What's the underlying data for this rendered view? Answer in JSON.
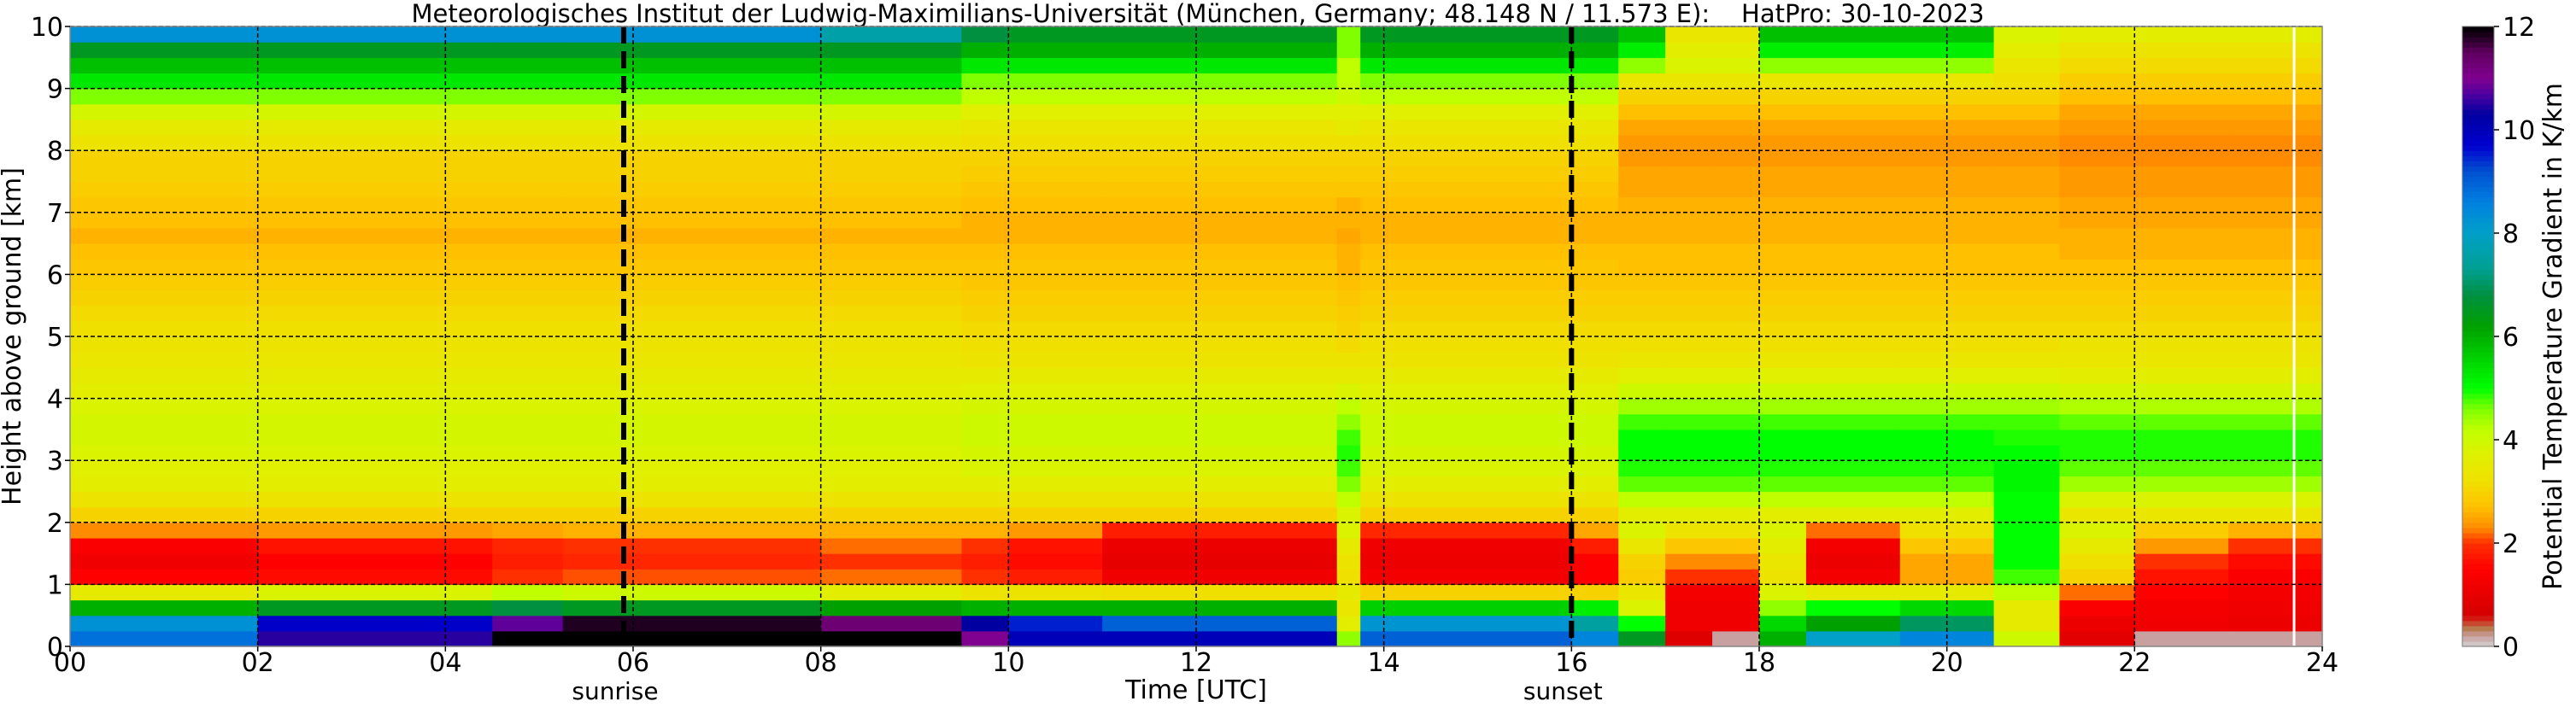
{
  "chart_data": {
    "type": "heatmap",
    "title": "Meteorologisches Institut der Ludwig-Maximilians-Universität (München, Germany; 48.148 N / 11.573 E):    HatPro: 30-10-2023",
    "xlabel": "Time [UTC]",
    "ylabel": "Height above ground [km]",
    "colorbar_label": "Potential Temperature Gradient in K/km",
    "xlim": [
      0,
      24
    ],
    "ylim": [
      0,
      10
    ],
    "clim": [
      0,
      12
    ],
    "grid": true,
    "x_ticks": [
      "00",
      "02",
      "04",
      "06",
      "08",
      "10",
      "12",
      "14",
      "16",
      "18",
      "20",
      "22",
      "24"
    ],
    "y_ticks": [
      "0",
      "1",
      "2",
      "3",
      "4",
      "5",
      "6",
      "7",
      "8",
      "9",
      "10"
    ],
    "colorbar_ticks": [
      "0",
      "2",
      "4",
      "6",
      "8",
      "10",
      "12"
    ],
    "markers": [
      {
        "label": "sunrise",
        "time": 5.9
      },
      {
        "label": "sunset",
        "time": 16.0
      }
    ],
    "missing_data_at": 23.7,
    "height_bin_km": 0.25,
    "columns": [
      {
        "t": 0,
        "values": [
          8.8,
          8.3,
          6.0,
          3.5,
          1.5,
          1.2,
          1.4,
          2.3,
          3.0,
          3.3,
          3.6,
          3.7,
          3.8,
          3.9,
          3.9,
          3.8,
          3.6,
          3.5,
          3.4,
          3.3,
          3.2,
          3.1,
          3.0,
          2.9,
          2.8,
          2.7,
          2.6,
          2.7,
          2.8,
          2.9,
          3.0,
          3.0,
          3.3,
          3.5,
          3.9,
          4.6,
          5.3,
          5.8,
          6.5,
          8.3
        ]
      },
      {
        "t": 2,
        "values": [
          10.5,
          9.8,
          6.5,
          3.8,
          1.6,
          1.5,
          1.7,
          2.4,
          3.0,
          3.3,
          3.6,
          3.7,
          3.8,
          3.9,
          3.9,
          3.8,
          3.6,
          3.5,
          3.4,
          3.3,
          3.2,
          3.1,
          3.0,
          2.9,
          2.8,
          2.7,
          2.6,
          2.7,
          2.8,
          2.9,
          3.0,
          3.0,
          3.3,
          3.5,
          3.9,
          4.6,
          5.3,
          5.8,
          6.5,
          8.3
        ]
      },
      {
        "t": 4.5,
        "values": [
          12,
          10.8,
          6.8,
          4.2,
          2.0,
          1.8,
          1.9,
          2.5,
          3.0,
          3.3,
          3.6,
          3.7,
          3.8,
          3.9,
          3.9,
          3.8,
          3.6,
          3.5,
          3.4,
          3.3,
          3.2,
          3.1,
          3.0,
          2.9,
          2.8,
          2.7,
          2.6,
          2.7,
          2.8,
          2.9,
          3.0,
          3.0,
          3.3,
          3.5,
          3.9,
          4.6,
          5.3,
          5.8,
          6.5,
          8.3
        ]
      },
      {
        "t": 5.25,
        "values": [
          12,
          11.8,
          6.5,
          4.0,
          2.1,
          1.9,
          2.0,
          2.6,
          3.0,
          3.3,
          3.6,
          3.7,
          3.8,
          3.9,
          3.9,
          3.8,
          3.6,
          3.5,
          3.4,
          3.3,
          3.2,
          3.1,
          3.0,
          2.9,
          2.8,
          2.7,
          2.6,
          2.7,
          2.8,
          2.9,
          3.0,
          3.0,
          3.3,
          3.5,
          3.9,
          4.6,
          5.3,
          5.8,
          6.5,
          8.3
        ]
      },
      {
        "t": 8,
        "values": [
          12,
          11.3,
          6.2,
          3.6,
          2.2,
          2.0,
          2.2,
          2.6,
          3.0,
          3.3,
          3.6,
          3.7,
          3.8,
          3.9,
          3.9,
          3.8,
          3.6,
          3.5,
          3.4,
          3.3,
          3.2,
          3.1,
          3.0,
          2.9,
          2.8,
          2.7,
          2.6,
          2.7,
          2.8,
          2.9,
          3.0,
          3.0,
          3.3,
          3.5,
          3.9,
          4.6,
          5.3,
          5.8,
          6.5,
          7.6
        ]
      },
      {
        "t": 9.5,
        "values": [
          11,
          10.3,
          6.0,
          3.3,
          2.0,
          1.8,
          2.0,
          2.6,
          3.0,
          3.3,
          3.6,
          3.8,
          3.9,
          4.0,
          4.0,
          3.9,
          3.7,
          3.5,
          3.3,
          3.2,
          3.1,
          3.0,
          2.9,
          2.8,
          2.8,
          2.7,
          2.6,
          2.6,
          2.7,
          2.8,
          2.9,
          3.0,
          3.2,
          3.4,
          3.7,
          4.2,
          4.6,
          5.3,
          6.0,
          6.8
        ]
      },
      {
        "t": 10,
        "values": [
          10,
          9.5,
          6.0,
          3.3,
          1.8,
          1.6,
          1.7,
          2.4,
          3.0,
          3.3,
          3.6,
          3.8,
          3.9,
          4.0,
          4.0,
          3.9,
          3.7,
          3.5,
          3.3,
          3.2,
          3.1,
          3.0,
          2.9,
          2.8,
          2.8,
          2.7,
          2.6,
          2.6,
          2.7,
          2.8,
          2.9,
          3.0,
          3.2,
          3.4,
          3.7,
          4.2,
          4.6,
          5.3,
          6.0,
          6.5
        ]
      },
      {
        "t": 11,
        "values": [
          10,
          9.0,
          6.0,
          3.2,
          1.2,
          1.0,
          1.1,
          1.8,
          3.0,
          3.3,
          3.6,
          3.8,
          3.9,
          4.0,
          4.0,
          3.9,
          3.7,
          3.5,
          3.3,
          3.2,
          3.1,
          3.0,
          2.9,
          2.8,
          2.8,
          2.7,
          2.6,
          2.6,
          2.7,
          2.8,
          2.9,
          3.0,
          3.2,
          3.4,
          3.7,
          4.2,
          4.6,
          5.3,
          6.0,
          6.5
        ]
      },
      {
        "t": 13.5,
        "values": [
          4.5,
          3.6,
          3.4,
          3.5,
          3.2,
          3.3,
          3.5,
          3.8,
          3.8,
          4.2,
          4.6,
          4.8,
          4.9,
          4.8,
          4.5,
          4.2,
          3.8,
          3.5,
          3.3,
          3.1,
          3.0,
          2.9,
          2.8,
          2.7,
          2.6,
          2.6,
          2.5,
          2.6,
          2.6,
          2.8,
          2.9,
          3.0,
          3.2,
          3.5,
          3.7,
          4.0,
          4.2,
          4.2,
          4.6,
          4.6
        ]
      },
      {
        "t": 13.75,
        "values": [
          9,
          8.2,
          5.6,
          3.0,
          1.3,
          1.1,
          1.2,
          1.9,
          3.0,
          3.3,
          3.6,
          3.8,
          3.9,
          4.0,
          4.0,
          3.9,
          3.7,
          3.5,
          3.3,
          3.2,
          3.1,
          3.0,
          2.9,
          2.8,
          2.8,
          2.7,
          2.6,
          2.6,
          2.7,
          2.8,
          2.9,
          3.0,
          3.2,
          3.4,
          3.7,
          4.2,
          4.6,
          5.3,
          6.0,
          6.5
        ]
      },
      {
        "t": 16,
        "values": [
          8.5,
          7.5,
          5.2,
          3.0,
          1.5,
          1.5,
          1.8,
          2.5,
          3.0,
          3.3,
          3.6,
          3.8,
          3.9,
          4.0,
          4.0,
          3.9,
          3.7,
          3.5,
          3.3,
          3.2,
          3.1,
          3.0,
          2.9,
          2.8,
          2.8,
          2.7,
          2.6,
          2.6,
          2.7,
          2.8,
          2.9,
          3.0,
          3.2,
          3.4,
          3.7,
          4.2,
          4.6,
          5.3,
          6.0,
          6.5
        ]
      },
      {
        "t": 16.5,
        "values": [
          6.5,
          5.0,
          3.8,
          3.4,
          2.9,
          3.0,
          3.4,
          3.8,
          3.6,
          4.2,
          4.7,
          4.9,
          5.0,
          5.0,
          4.8,
          4.4,
          4.0,
          3.7,
          3.4,
          3.2,
          3.1,
          3.0,
          2.9,
          2.8,
          2.7,
          2.7,
          2.6,
          2.6,
          2.6,
          2.5,
          2.5,
          2.4,
          2.4,
          2.5,
          2.7,
          3.0,
          3.4,
          4.5,
          5.2,
          5.8
        ]
      },
      {
        "t": 17,
        "values": [
          0.8,
          1.2,
          1.2,
          1.3,
          2.0,
          2.3,
          2.8,
          3.3,
          3.6,
          4.2,
          4.7,
          4.9,
          5.0,
          5.0,
          4.8,
          4.4,
          4.0,
          3.7,
          3.4,
          3.2,
          3.1,
          3.0,
          2.9,
          2.8,
          2.7,
          2.7,
          2.6,
          2.6,
          2.6,
          2.5,
          2.5,
          2.4,
          2.4,
          2.5,
          2.7,
          3.0,
          3.4,
          3.8,
          3.6,
          3.4
        ]
      },
      {
        "t": 17.5,
        "values": [
          0.2,
          1.2,
          1.2,
          1.3,
          2.0,
          2.3,
          2.8,
          3.3,
          3.6,
          4.2,
          4.7,
          4.9,
          5.0,
          5.0,
          4.8,
          4.4,
          4.0,
          3.7,
          3.4,
          3.2,
          3.1,
          3.0,
          2.9,
          2.8,
          2.7,
          2.7,
          2.6,
          2.6,
          2.6,
          2.5,
          2.5,
          2.4,
          2.4,
          2.5,
          2.7,
          3.0,
          3.4,
          3.8,
          3.6,
          3.4
        ]
      },
      {
        "t": 18,
        "values": [
          6.0,
          5.5,
          4.5,
          3.8,
          3.3,
          3.4,
          3.6,
          3.8,
          3.6,
          4.2,
          4.7,
          4.9,
          5.0,
          5.0,
          4.8,
          4.4,
          4.0,
          3.7,
          3.4,
          3.2,
          3.1,
          3.0,
          2.9,
          2.8,
          2.7,
          2.7,
          2.6,
          2.6,
          2.6,
          2.5,
          2.5,
          2.4,
          2.4,
          2.5,
          2.7,
          3.0,
          3.4,
          4.5,
          5.2,
          5.8
        ]
      },
      {
        "t": 18.5,
        "values": [
          8.0,
          6.2,
          5.0,
          3.5,
          1.3,
          1.1,
          1.3,
          2.2,
          3.6,
          4.2,
          4.7,
          4.9,
          5.0,
          5.0,
          4.8,
          4.4,
          4.0,
          3.7,
          3.4,
          3.2,
          3.1,
          3.0,
          2.9,
          2.8,
          2.7,
          2.7,
          2.6,
          2.6,
          2.6,
          2.5,
          2.5,
          2.4,
          2.4,
          2.5,
          2.7,
          3.0,
          3.4,
          4.5,
          5.2,
          5.8
        ]
      },
      {
        "t": 19.5,
        "values": [
          8.5,
          7.0,
          5.5,
          3.5,
          2.5,
          2.5,
          2.8,
          3.2,
          3.6,
          4.2,
          4.7,
          4.9,
          5.0,
          5.0,
          4.8,
          4.4,
          4.0,
          3.7,
          3.4,
          3.2,
          3.1,
          3.0,
          2.9,
          2.8,
          2.7,
          2.7,
          2.6,
          2.6,
          2.6,
          2.5,
          2.5,
          2.4,
          2.4,
          2.5,
          2.7,
          3.0,
          3.4,
          4.5,
          5.2,
          5.8
        ]
      },
      {
        "t": 20.5,
        "values": [
          4.0,
          3.5,
          3.5,
          4.2,
          4.8,
          5.0,
          5.0,
          5.0,
          5.0,
          5.0,
          5.1,
          5.1,
          5.0,
          4.9,
          4.8,
          4.4,
          4.0,
          3.7,
          3.4,
          3.2,
          3.1,
          3.0,
          2.9,
          2.8,
          2.7,
          2.7,
          2.6,
          2.6,
          2.6,
          2.5,
          2.5,
          2.4,
          2.4,
          2.5,
          2.7,
          3.0,
          3.2,
          3.4,
          3.6,
          3.8
        ]
      },
      {
        "t": 21.2,
        "values": [
          0.9,
          1.1,
          1.4,
          2.2,
          3.0,
          3.2,
          3.5,
          3.8,
          3.4,
          3.8,
          4.4,
          4.7,
          4.9,
          4.9,
          4.7,
          4.3,
          3.9,
          3.6,
          3.4,
          3.3,
          3.1,
          3.0,
          2.9,
          2.8,
          2.7,
          2.6,
          2.6,
          2.5,
          2.5,
          2.4,
          2.4,
          2.3,
          2.3,
          2.4,
          2.5,
          2.7,
          2.9,
          3.1,
          3.3,
          3.6
        ]
      },
      {
        "t": 22,
        "values": [
          0.2,
          1.2,
          1.3,
          1.5,
          1.7,
          2.0,
          2.4,
          2.9,
          3.4,
          3.8,
          4.4,
          4.7,
          4.9,
          4.9,
          4.7,
          4.3,
          3.9,
          3.6,
          3.4,
          3.3,
          3.1,
          3.0,
          2.9,
          2.8,
          2.7,
          2.6,
          2.6,
          2.5,
          2.5,
          2.4,
          2.4,
          2.3,
          2.3,
          2.4,
          2.5,
          2.7,
          2.9,
          3.1,
          3.3,
          3.6
        ]
      },
      {
        "t": 23,
        "values": [
          0.2,
          1.1,
          1.2,
          1.3,
          1.4,
          1.6,
          2.0,
          2.6,
          3.4,
          3.8,
          4.4,
          4.7,
          4.9,
          4.9,
          4.7,
          4.3,
          3.9,
          3.6,
          3.4,
          3.3,
          3.1,
          3.0,
          2.9,
          2.8,
          2.7,
          2.6,
          2.6,
          2.5,
          2.5,
          2.4,
          2.4,
          2.3,
          2.3,
          2.4,
          2.5,
          2.7,
          2.9,
          3.1,
          3.3,
          3.6
        ]
      }
    ],
    "colormap": [
      [
        0.0,
        "#d3d3d3"
      ],
      [
        0.2,
        "#c8a0a0"
      ],
      [
        0.35,
        "#b87b50"
      ],
      [
        0.5,
        "#d03020"
      ],
      [
        0.6,
        "#d40000"
      ],
      [
        1.5,
        "#ff0000"
      ],
      [
        2.0,
        "#ff3000"
      ],
      [
        2.3,
        "#ff8c00"
      ],
      [
        2.7,
        "#ffc000"
      ],
      [
        3.2,
        "#f0e000"
      ],
      [
        3.7,
        "#e0f000"
      ],
      [
        4.2,
        "#c0ff00"
      ],
      [
        4.6,
        "#80ff00"
      ],
      [
        5.0,
        "#00ff00"
      ],
      [
        5.6,
        "#00d000"
      ],
      [
        6.2,
        "#00a000"
      ],
      [
        6.8,
        "#009040"
      ],
      [
        7.3,
        "#00a090"
      ],
      [
        8.0,
        "#00a0c8"
      ],
      [
        8.6,
        "#0080e0"
      ],
      [
        9.2,
        "#0050d0"
      ],
      [
        9.7,
        "#0000d0"
      ],
      [
        10.3,
        "#0000a0"
      ],
      [
        10.7,
        "#5000a0"
      ],
      [
        11.0,
        "#800090"
      ],
      [
        11.5,
        "#600060"
      ],
      [
        11.8,
        "#200020"
      ],
      [
        12.0,
        "#000000"
      ]
    ]
  }
}
